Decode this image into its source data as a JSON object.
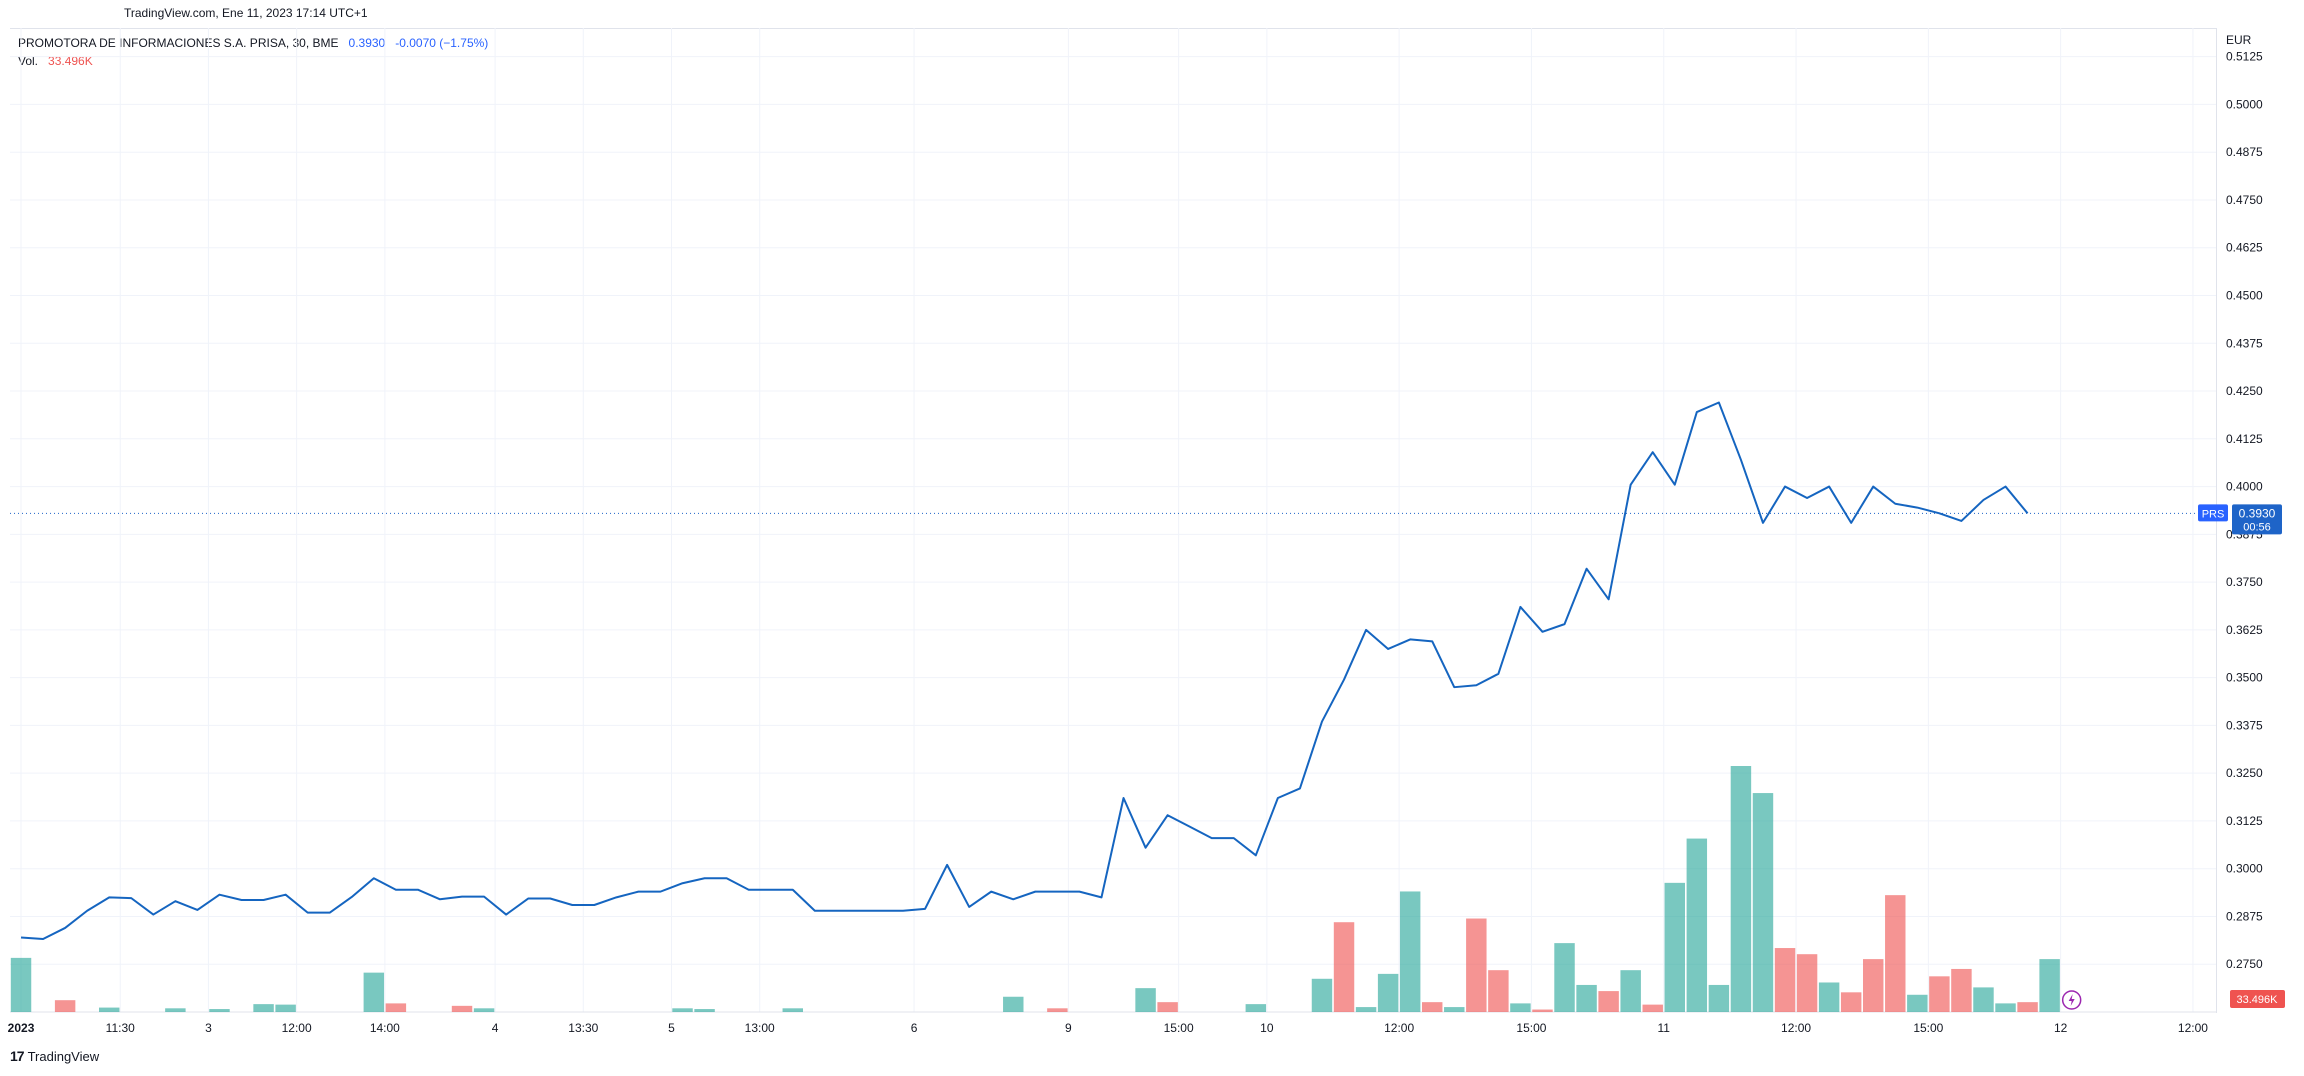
{
  "caption": "TradingView.com, Ene 11, 2023 17:14 UTC+1",
  "legend": {
    "symbol": "PROMOTORA DE INFORMACIONES S.A. PRISA, 30, BME",
    "last": "0.3930",
    "change": "-0.0070 (−1.75%)",
    "volume_label": "Vol.",
    "volume_value": "33.496K"
  },
  "footer": {
    "brand": "TradingView",
    "logo_mark": "17"
  },
  "colors": {
    "line": "#1565c0",
    "vol_up": "#26a69a",
    "vol_down": "#ef5350",
    "price_badge": "#1e64c8",
    "symbol_badge": "#2962ff",
    "grid": "#f0f3fa",
    "vol_badge": "#ef5350"
  },
  "chart_data": {
    "type": "line",
    "currency": "EUR",
    "ylim": [
      0.2625,
      0.52
    ],
    "y_ticks": [
      "0.5125",
      "0.5000",
      "0.4875",
      "0.4750",
      "0.4625",
      "0.4500",
      "0.4375",
      "0.4250",
      "0.4125",
      "0.4000",
      "0.3875",
      "0.3750",
      "0.3625",
      "0.3500",
      "0.3375",
      "0.3250",
      "0.3125",
      "0.3000",
      "0.2875",
      "0.2750"
    ],
    "y_tick_values": [
      0.5125,
      0.5,
      0.4875,
      0.475,
      0.4625,
      0.45,
      0.4375,
      0.425,
      0.4125,
      0.4,
      0.3875,
      0.375,
      0.3625,
      0.35,
      0.3375,
      0.325,
      0.3125,
      0.3,
      0.2875,
      0.275
    ],
    "x_ticks": [
      {
        "label": "2023",
        "i": 0.5,
        "bold": true
      },
      {
        "label": "11:30",
        "i": 5
      },
      {
        "label": "3",
        "i": 9
      },
      {
        "label": "12:00",
        "i": 13
      },
      {
        "label": "14:00",
        "i": 17
      },
      {
        "label": "4",
        "i": 22
      },
      {
        "label": "13:30",
        "i": 26
      },
      {
        "label": "5",
        "i": 30
      },
      {
        "label": "13:00",
        "i": 34
      },
      {
        "label": "6",
        "i": 41
      },
      {
        "label": "9",
        "i": 48
      },
      {
        "label": "15:00",
        "i": 53
      },
      {
        "label": "10",
        "i": 57
      },
      {
        "label": "12:00",
        "i": 63
      },
      {
        "label": "15:00",
        "i": 69
      },
      {
        "label": "11",
        "i": 75
      },
      {
        "label": "12:00",
        "i": 81
      },
      {
        "label": "15:00",
        "i": 87
      },
      {
        "label": "12",
        "i": 93
      },
      {
        "label": "12:00",
        "i": 99
      }
    ],
    "n_slots": 103,
    "series": [
      {
        "values": [
          0.282,
          0.2816,
          0.2845,
          0.289,
          0.2925,
          0.2923,
          0.288,
          0.2915,
          0.2892,
          0.2932,
          0.2918,
          0.2918,
          0.2932,
          0.2885,
          0.2885,
          0.2926,
          0.2975,
          0.2945,
          0.2945,
          0.292,
          0.2927,
          0.2927,
          0.288,
          0.2922,
          0.2922,
          0.2905,
          0.2905,
          0.2925,
          0.294,
          0.294,
          0.2962,
          0.2975,
          0.2975,
          0.2945,
          0.2945,
          0.2945,
          0.289,
          0.289,
          0.289,
          0.289,
          0.289,
          0.2895,
          0.301,
          0.29,
          0.294,
          0.292,
          0.294,
          0.294,
          0.294,
          0.2925,
          0.3185,
          0.3055,
          0.314,
          0.311,
          0.308,
          0.308,
          0.3035,
          0.3185,
          0.321,
          0.3385,
          0.3495,
          0.3625,
          0.3575,
          0.36,
          0.3595,
          0.3475,
          0.348,
          0.351,
          0.3685,
          0.362,
          0.364,
          0.3785,
          0.3705,
          0.4005,
          0.409,
          0.4005,
          0.4195,
          0.422,
          0.407,
          0.3905,
          0.4,
          0.397,
          0.4,
          0.3905,
          0.4,
          0.3955,
          0.3945,
          0.393,
          0.391,
          0.3965,
          0.4,
          0.393
        ]
      }
    ],
    "volume": {
      "values": [
        0.22,
        0.0,
        0.048,
        0.0,
        0.018,
        0.0,
        0.0,
        0.015,
        0.0,
        0.012,
        0.0,
        0.032,
        0.03,
        0.0,
        0.0,
        0.0,
        0.16,
        0.035,
        0.0,
        0.0,
        0.025,
        0.015,
        0.0,
        0.0,
        0.0,
        0.0,
        0.0,
        0.0,
        0.0,
        0.0,
        0.015,
        0.012,
        0.0,
        0.0,
        0.0,
        0.015,
        0.0,
        0.0,
        0.0,
        0.0,
        0.0,
        0.0,
        0.0,
        0.0,
        0.0,
        0.062,
        0.0,
        0.015,
        0.0,
        0.0,
        0.0,
        0.097,
        0.04,
        0.0,
        0.0,
        0.0,
        0.032,
        0.0,
        0.0,
        0.135,
        0.365,
        0.02,
        0.155,
        0.49,
        0.04,
        0.02,
        0.38,
        0.17,
        0.035,
        0.01,
        0.28,
        0.11,
        0.085,
        0.17,
        0.03,
        0.525,
        0.705,
        0.11,
        1.0,
        0.89,
        0.26,
        0.235,
        0.12,
        0.08,
        0.215,
        0.475,
        0.07,
        0.145,
        0.175,
        0.1,
        0.035,
        0.04,
        0.215,
        0.0
      ],
      "colors": [
        "up",
        "down",
        "down",
        "up",
        "up",
        "down",
        "up",
        "up",
        "up",
        "up",
        "up",
        "up",
        "up",
        "up",
        "down",
        "up",
        "up",
        "down",
        "down",
        "down",
        "down",
        "up",
        "up",
        "up",
        "up",
        "up",
        "up",
        "up",
        "up",
        "up",
        "up",
        "up",
        "up",
        "up",
        "up",
        "up",
        "up",
        "up",
        "up",
        "up",
        "up",
        "down",
        "up",
        "up",
        "up",
        "up",
        "up",
        "down",
        "up",
        "up",
        "up",
        "up",
        "down",
        "up",
        "up",
        "up",
        "up",
        "up",
        "up",
        "up",
        "down",
        "up",
        "up",
        "up",
        "down",
        "up",
        "down",
        "down",
        "up",
        "down",
        "up",
        "up",
        "down",
        "up",
        "down",
        "up",
        "up",
        "up",
        "up",
        "up",
        "down",
        "down",
        "up",
        "down",
        "down",
        "down",
        "up",
        "down",
        "down",
        "up",
        "up",
        "down",
        "up",
        "up"
      ],
      "last": "33.496K"
    },
    "last_price": "0.3930",
    "last_price_value": 0.393,
    "symbol_badge": "PRS",
    "countdown": "00:56"
  }
}
